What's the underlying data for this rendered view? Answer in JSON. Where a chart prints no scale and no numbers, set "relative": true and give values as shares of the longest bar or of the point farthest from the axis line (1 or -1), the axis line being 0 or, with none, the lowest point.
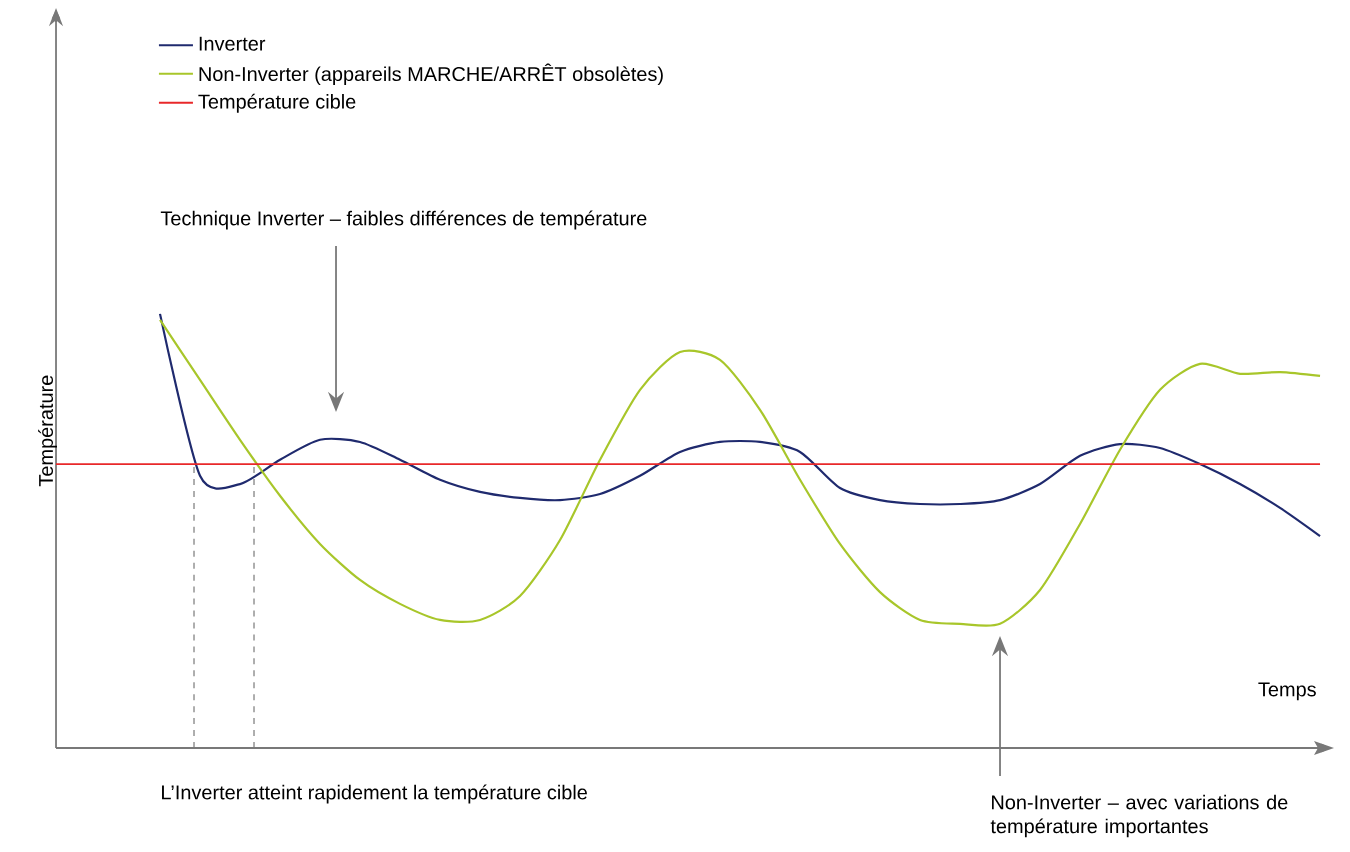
{
  "chart_data": {
    "type": "line",
    "relative": true,
    "xlabel": "Temps",
    "ylabel": "Température",
    "legend": "top left",
    "categories": [
      null,
      null,
      null,
      null,
      null,
      null,
      null,
      null,
      null,
      null,
      null,
      null,
      null,
      null,
      null,
      null,
      null,
      null,
      null,
      null,
      null,
      null,
      null,
      null,
      null,
      null,
      null,
      null,
      null,
      null
    ],
    "series": [
      {
        "name": "Inverter",
        "color": "#1f2a6e",
        "values": [
          1.0,
          0.627,
          0.608,
          0.664,
          0.71,
          0.705,
          0.664,
          0.618,
          0.59,
          0.576,
          0.571,
          0.585,
          0.627,
          0.682,
          0.705,
          0.705,
          0.682,
          0.599,
          0.571,
          0.562,
          0.562,
          0.571,
          0.608,
          0.673,
          0.7,
          0.691,
          0.654,
          0.608,
          0.553,
          0.488
        ]
      },
      {
        "name": "Non-Inverter (appareils MARCHE/ARRÊT obsolètes)",
        "color": "#a8c62a",
        "values": [
          0.986,
          0.848,
          0.71,
          0.581,
          0.47,
          0.387,
          0.332,
          0.295,
          0.295,
          0.35,
          0.479,
          0.664,
          0.825,
          0.912,
          0.894,
          0.779,
          0.618,
          0.47,
          0.359,
          0.295,
          0.286,
          0.286,
          0.364,
          0.516,
          0.687,
          0.825,
          0.885,
          0.862,
          0.866,
          0.857
        ]
      }
    ],
    "ref_lines": [
      {
        "axis": "y",
        "value": 0.654,
        "label": "Température cible",
        "color": "#e8282a",
        "line_style": "solid"
      }
    ],
    "annotations": [
      "Technique Inverter – faibles différences de température",
      "L’Inverter atteint rapidement la température cible",
      "Non-Inverter – avec variations de température importantes"
    ]
  }
}
